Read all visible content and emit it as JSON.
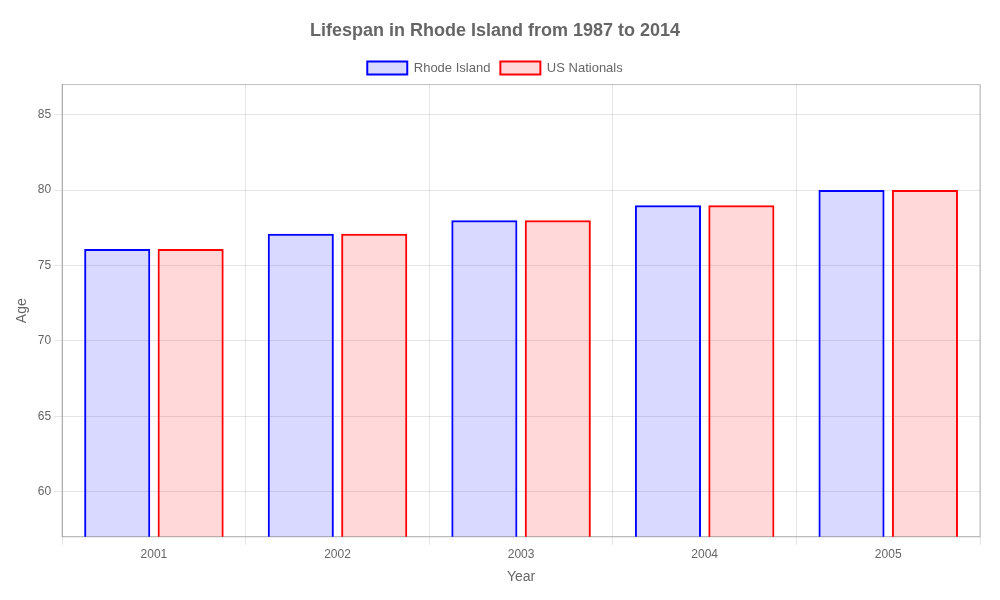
{
  "chart_data": {
    "type": "bar",
    "title": "Lifespan in Rhode Island from 1987 to 2014",
    "x_label": "Year",
    "y_label": "Age",
    "categories": [
      "2001",
      "2002",
      "2003",
      "2004",
      "2005"
    ],
    "series": [
      {
        "name": "Rhode Island",
        "color": "#0000ff",
        "values": [
          76.1,
          77.1,
          78.0,
          79.0,
          80.0
        ]
      },
      {
        "name": "US Nationals",
        "color": "#ff0000",
        "values": [
          76.1,
          77.1,
          78.0,
          79.0,
          80.0
        ]
      }
    ],
    "ylim": [
      57,
      87
    ],
    "yticks": [
      60,
      65,
      70,
      75,
      80,
      85
    ],
    "grid": true,
    "legend": "top"
  }
}
